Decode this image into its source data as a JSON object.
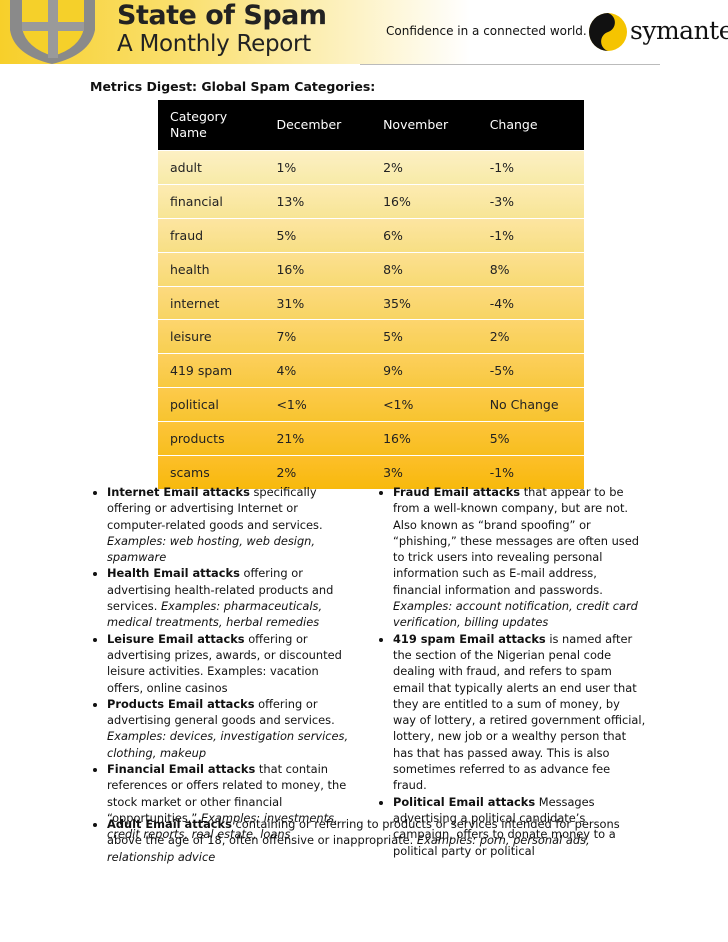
{
  "header": {
    "title": "State of Spam",
    "subtitle": "A Monthly Report",
    "tagline": "Confidence in a connected world.",
    "brand": "symantec."
  },
  "section_title": "Metrics Digest: Global Spam Categories:",
  "table": {
    "columns": [
      "Category Name",
      "December",
      "November",
      "Change"
    ],
    "rows": [
      [
        "adult",
        "1%",
        "2%",
        "-1%"
      ],
      [
        "financial",
        "13%",
        "16%",
        "-3%"
      ],
      [
        "fraud",
        "5%",
        "6%",
        "-1%"
      ],
      [
        "health",
        "16%",
        "8%",
        "8%"
      ],
      [
        "internet",
        "31%",
        "35%",
        "-4%"
      ],
      [
        "leisure",
        "7%",
        "5%",
        "2%"
      ],
      [
        "419 spam",
        "4%",
        "9%",
        "-5%"
      ],
      [
        "political",
        "<1%",
        "<1%",
        "No Change"
      ],
      [
        "products",
        "21%",
        "16%",
        "5%"
      ],
      [
        "scams",
        "2%",
        "3%",
        "-1%"
      ]
    ]
  },
  "bullets_left": [
    {
      "bold": "Internet Email attacks",
      "text": "specifically offering or advertising Internet or computer-related goods and services.",
      "italic": "Examples: web hosting, web design, spamware"
    },
    {
      "bold": "Health Email attacks",
      "text": "offering or advertising health-related products and services.",
      "italic": "Examples: pharmaceuticals, medical treatments, herbal remedies"
    },
    {
      "bold": "Leisure Email attacks",
      "text": "offering or advertising prizes, awards, or discounted leisure activities. Examples: vacation offers, online casinos"
    },
    {
      "bold": "Products Email attacks",
      "text": "offering or advertising general goods and services.",
      "italic": "Examples: devices, investigation services, clothing, makeup"
    },
    {
      "bold": "Financial Email attacks",
      "text": "that contain references or offers related to money, the stock market or other financial “opportunities.”",
      "italic": "Examples: investments, credit reports, real estate, loans"
    }
  ],
  "bullets_right": [
    {
      "bold": "Fraud Email attacks",
      "text": "that appear to be from a well-known company, but are not. Also known as “brand spoofing” or “phishing,” these messages are often used to trick users into revealing personal information such as E-mail address, financial information and passwords.",
      "italic": "Examples: account notification, credit card verification, billing updates"
    },
    {
      "bold": "419 spam Email attacks",
      "text": "is named after the section of the Nigerian penal code dealing with fraud, and refers to spam email that typically alerts an end user that they are entitled to a sum of money, by way of lottery, a retired government official, lottery, new job or a wealthy person that has that has passed away. This is also sometimes referred to as advance fee fraud."
    },
    {
      "bold": "Political Email attacks",
      "text": "Messages advertising a political candidate’s campaign, offers to donate money to a political party or political"
    }
  ],
  "bullet_bottom": {
    "bold": "Adult Email attacks",
    "text": "containing or referring to products or services intended for persons above the age of 18, often offensive or inappropriate.",
    "italic": "Examples: porn, personal ads, relationship advice"
  }
}
